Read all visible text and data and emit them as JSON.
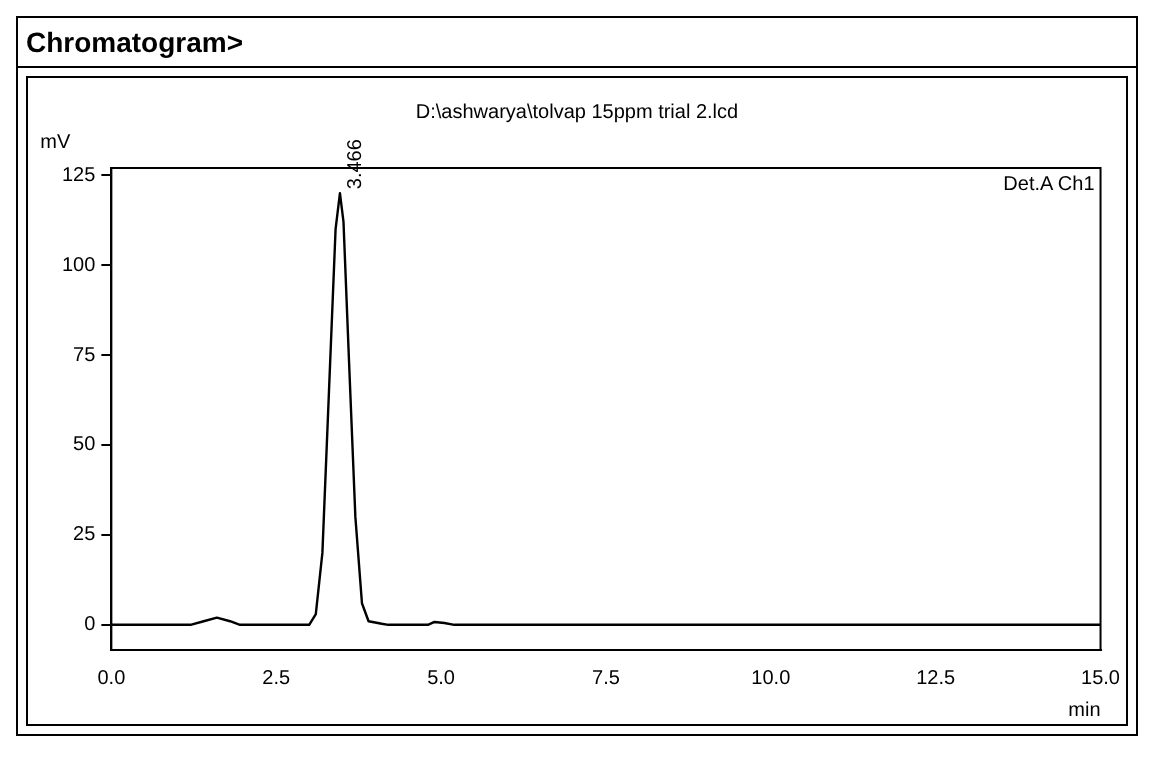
{
  "chart_data": {
    "type": "line",
    "title": "Chromatogram>",
    "subtitle": "D:\\ashwarya\\tolvap 15ppm trial 2.lcd",
    "xlabel": "min",
    "ylabel": "mV",
    "x": [
      0,
      1.2,
      1.4,
      1.6,
      1.8,
      1.95,
      3.0,
      3.1,
      3.2,
      3.3,
      3.4,
      3.466,
      3.52,
      3.6,
      3.7,
      3.8,
      3.9,
      4.1,
      4.2,
      4.8,
      4.9,
      5.05,
      5.2,
      15
    ],
    "series": [
      {
        "color": "#000000",
        "values": [
          0,
          0,
          1,
          2,
          1,
          0,
          0,
          3,
          20,
          65,
          110,
          120,
          112,
          75,
          30,
          6,
          1,
          0.3,
          0,
          0,
          0.8,
          0.5,
          0,
          0
        ]
      }
    ],
    "xlim": [
      0,
      15
    ],
    "ylim": [
      -7,
      127
    ],
    "xticks": [
      {
        "value": 0,
        "label": "0.0"
      },
      2.5,
      {
        "value": 5,
        "label": "5.0"
      },
      7.5,
      {
        "value": 10,
        "label": "10.0"
      },
      12.5,
      {
        "value": 15,
        "label": "15.0"
      }
    ],
    "yticks": [
      0,
      25,
      50,
      75,
      100,
      125
    ],
    "annotations": [
      {
        "text": "3.466",
        "x": 3.466,
        "y": 120
      },
      "Det.A Ch1"
    ],
    "grid": false,
    "legend": false,
    "marker": "none",
    "line_style": "solid"
  }
}
